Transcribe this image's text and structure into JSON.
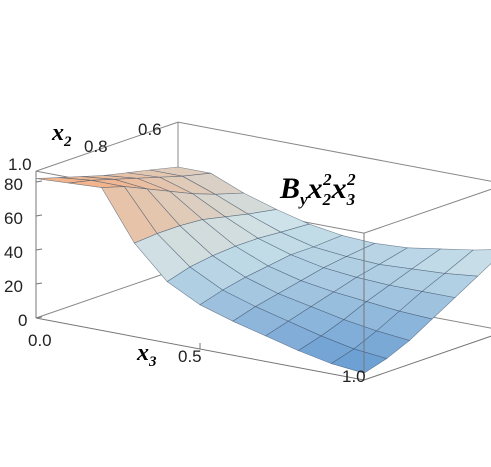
{
  "chart_data": {
    "type": "surface3d",
    "annotation": {
      "base": "B",
      "sub_y": "y",
      "x2": "x",
      "sub_2": "2",
      "sup_2a": "2",
      "x3": "x",
      "sub_3": "3",
      "sup_3": "2"
    },
    "axes": {
      "x3": {
        "label_base": "x",
        "label_sub": "3",
        "range": [
          0.0,
          1.0
        ],
        "ticks": [
          "0.0",
          "0.5",
          "1.0"
        ]
      },
      "x2": {
        "label_base": "x",
        "label_sub": "2",
        "range": [
          0.5,
          1.0
        ],
        "ticks": [
          "1.0",
          "0.8",
          "0.6"
        ]
      },
      "z": {
        "range": [
          0,
          80
        ],
        "ticks": [
          "80",
          "60",
          "40",
          "20",
          "0"
        ]
      }
    },
    "surface": {
      "x3_samples": [
        0.0,
        0.1,
        0.2,
        0.3,
        0.4,
        0.5,
        0.6,
        0.7,
        0.8,
        0.9,
        1.0
      ],
      "x2_samples": [
        1.0,
        0.92,
        0.84,
        0.76,
        0.68,
        0.6,
        0.5
      ],
      "z_rows": [
        [
          82,
          83,
          84,
          55,
          36,
          26,
          20,
          15,
          10,
          6,
          4
        ],
        [
          78,
          80,
          80,
          56,
          40,
          30,
          24,
          19,
          14,
          10,
          8
        ],
        [
          74,
          76,
          74,
          56,
          42,
          33,
          27,
          23,
          19,
          16,
          14
        ],
        [
          70,
          72,
          68,
          55,
          43,
          35,
          30,
          27,
          25,
          23,
          22
        ],
        [
          67,
          68,
          62,
          52,
          43,
          37,
          33,
          31,
          30,
          30,
          30
        ],
        [
          64,
          64,
          57,
          49,
          42,
          37,
          35,
          34,
          35,
          36,
          38
        ],
        [
          60,
          60,
          52,
          46,
          41,
          38,
          37,
          38,
          41,
          44,
          48
        ]
      ],
      "colors": {
        "low": "#5b93cf",
        "mid": "#cde3ea",
        "high": "#f1b48c",
        "top": "#7fb0dc",
        "edge": "#3a4d66"
      }
    },
    "box": true,
    "grid": false
  }
}
